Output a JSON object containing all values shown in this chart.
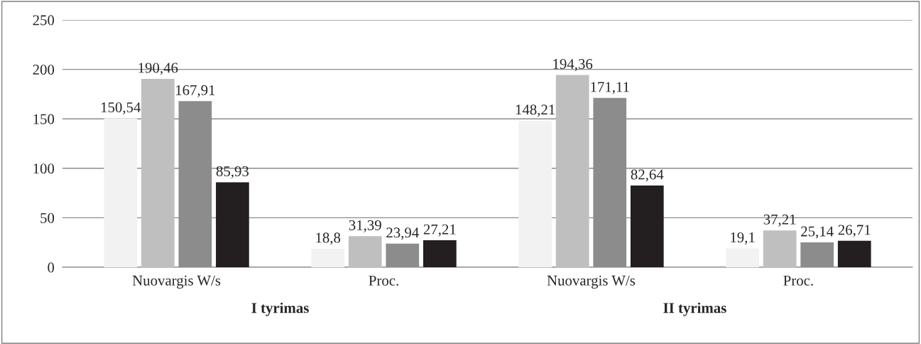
{
  "chart_data": {
    "type": "bar",
    "categories": [
      "Nuovargis W/s",
      "Proc.",
      "Nuovargis W/s",
      "Proc."
    ],
    "series": [
      {
        "color": "#f2f2f2",
        "values": [
          150.54,
          18.8,
          148.21,
          19.1
        ],
        "value_labels": [
          "150,54",
          "18,8",
          "148,21",
          "19,1"
        ]
      },
      {
        "color": "#bfbfbf",
        "values": [
          190.46,
          31.39,
          194.36,
          37.21
        ],
        "value_labels": [
          "190,46",
          "31,39",
          "194,36",
          "37,21"
        ]
      },
      {
        "color": "#8c8c8c",
        "values": [
          167.91,
          23.94,
          171.11,
          25.14
        ],
        "value_labels": [
          "167,91",
          "23,94",
          "171,11",
          "25,14"
        ]
      },
      {
        "color": "#231f20",
        "values": [
          85.93,
          27.21,
          82.64,
          26.71
        ],
        "value_labels": [
          "85,93",
          "27,21",
          "82,64",
          "26,71"
        ]
      }
    ],
    "annotations": [
      "I tyrimas",
      "II tyrimas"
    ],
    "ylim": [
      0,
      250
    ],
    "yticks": [
      0,
      50,
      100,
      150,
      200,
      250
    ],
    "grid": "y",
    "legend": false
  }
}
